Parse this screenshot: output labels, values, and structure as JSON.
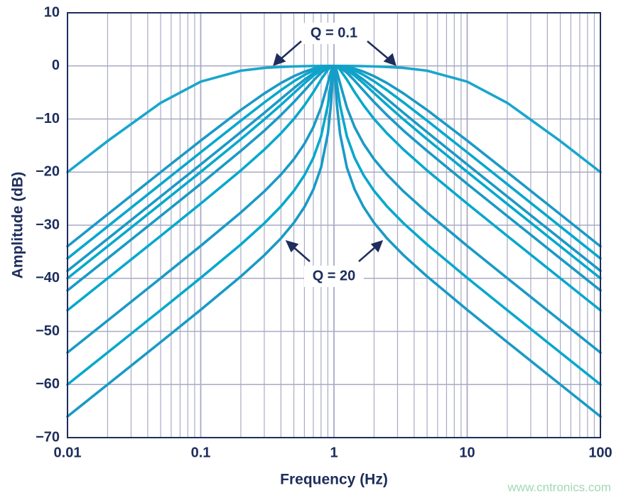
{
  "chart_data": {
    "type": "line",
    "x_label": "Frequency (Hz)",
    "y_label": "Amplitude (dB)",
    "x_scale": "log",
    "grid": true,
    "xlim": [
      0.01,
      100
    ],
    "xticks": [
      0.01,
      0.1,
      1,
      10,
      100
    ],
    "ylim": [
      -70,
      10
    ],
    "yticks": [
      {
        "value": -70,
        "label": "−70"
      },
      {
        "value": -60,
        "label": "−60"
      },
      {
        "value": -50,
        "label": "−50"
      },
      {
        "value": -40,
        "label": "−40"
      },
      {
        "value": -30,
        "label": "−30"
      },
      {
        "value": -20,
        "label": "−20"
      },
      {
        "value": -10,
        "label": "−10"
      },
      0,
      10
    ],
    "annotations": [
      "Q = 0.1",
      "Q = 20"
    ],
    "watermark": "www.cntronics.com",
    "x": [
      0.01,
      0.02,
      0.05,
      0.1,
      0.2,
      0.3,
      0.4,
      0.5,
      0.6,
      0.7,
      0.8,
      0.9,
      0.95,
      0.98,
      1,
      1.02,
      1.05,
      1.11,
      1.25,
      1.43,
      1.67,
      2,
      2.5,
      3.33,
      5,
      10,
      20,
      50,
      100
    ],
    "series": [
      {
        "color": "#19a6cc",
        "values": [
          -20.0,
          -14.15,
          -6.97,
          -2.97,
          -0.9,
          -0.38,
          -0.19,
          -0.1,
          -0.05,
          -0.02,
          -0.01,
          0,
          0,
          0,
          0,
          0,
          0,
          0,
          -0.01,
          -0.02,
          -0.05,
          -0.1,
          -0.19,
          -0.38,
          -0.9,
          -2.97,
          -6.97,
          -14.15,
          -20.0
        ]
      },
      {
        "color": "#1a9ac6",
        "values": [
          -33.98,
          -27.96,
          -20.02,
          -14.07,
          -8.3,
          -5.19,
          -3.23,
          -1.94,
          -1.09,
          -0.54,
          -0.21,
          -0.05,
          -0.01,
          0,
          0,
          0,
          -0.01,
          -0.05,
          -0.21,
          -0.54,
          -1.09,
          -1.94,
          -3.23,
          -5.19,
          -8.3,
          -14.07,
          -20.02,
          -27.96,
          -33.98
        ]
      },
      {
        "color": "#08a8cc",
        "values": [
          -36.26,
          -30.24,
          -22.28,
          -16.27,
          -10.31,
          -6.89,
          -4.57,
          -2.9,
          -1.71,
          -0.88,
          -0.36,
          -0.08,
          -0.02,
          0,
          0,
          0,
          -0.02,
          -0.08,
          -0.36,
          -0.88,
          -1.71,
          -2.9,
          -4.57,
          -6.89,
          -10.31,
          -16.27,
          -22.28,
          -30.24,
          -36.26
        ]
      },
      {
        "color": "#1a9ac6",
        "values": [
          -38.59,
          -32.57,
          -24.6,
          -18.56,
          -12.47,
          -8.84,
          -6.22,
          -4.19,
          -2.61,
          -1.42,
          -0.59,
          -0.14,
          -0.03,
          -0.01,
          0,
          -0.01,
          -0.03,
          -0.14,
          -0.59,
          -1.42,
          -2.61,
          -4.19,
          -6.22,
          -8.84,
          -12.47,
          -18.56,
          -24.6,
          -32.57,
          -38.59
        ]
      },
      {
        "color": "#08a8cc",
        "values": [
          -40.0,
          -33.98,
          -26.01,
          -19.96,
          -13.81,
          -10.09,
          -7.34,
          -5.12,
          -3.3,
          -1.85,
          -0.8,
          -0.19,
          -0.05,
          -0.01,
          0,
          -0.01,
          -0.05,
          -0.19,
          -0.8,
          -1.85,
          -3.3,
          -5.12,
          -7.34,
          -10.09,
          -13.81,
          -19.96,
          -26.01,
          -33.98,
          -40.0
        ]
      },
      {
        "color": "#1a9ac6",
        "values": [
          -42.28,
          -36.26,
          -28.28,
          -22.22,
          -16.01,
          -12.2,
          -9.27,
          -6.81,
          -4.66,
          -2.78,
          -1.28,
          -0.32,
          -0.08,
          -0.01,
          0,
          -0.01,
          -0.08,
          -0.32,
          -1.28,
          -2.78,
          -4.66,
          -6.81,
          -9.27,
          -12.2,
          -16.01,
          -22.22,
          -28.28,
          -36.26,
          -42.28
        ]
      },
      {
        "color": "#08a8cc",
        "values": [
          -46.02,
          -40.0,
          -32.02,
          -25.94,
          -19.69,
          -15.77,
          -12.7,
          -10.0,
          -7.44,
          -4.95,
          -2.58,
          -0.71,
          -0.18,
          -0.03,
          0,
          -0.03,
          -0.18,
          -0.71,
          -2.58,
          -4.95,
          -7.44,
          -10.0,
          -12.7,
          -15.77,
          -19.69,
          -25.94,
          -32.02,
          -40.0,
          -46.02
        ]
      },
      {
        "color": "#1a9ac6",
        "values": [
          -53.98,
          -47.96,
          -39.98,
          -33.89,
          -27.61,
          -23.64,
          -20.46,
          -17.58,
          -14.69,
          -11.54,
          -7.83,
          -3.25,
          -1.02,
          -0.17,
          0,
          -0.17,
          -1.02,
          -3.25,
          -7.83,
          -11.54,
          -14.69,
          -17.58,
          -20.46,
          -23.64,
          -27.61,
          -33.89,
          -39.98,
          -47.96,
          -53.98
        ]
      },
      {
        "color": "#08a8cc",
        "values": [
          -60.0,
          -53.98,
          -46.0,
          -39.91,
          -33.63,
          -29.64,
          -26.45,
          -23.54,
          -20.6,
          -17.33,
          -13.28,
          -7.37,
          -3.12,
          -0.66,
          0,
          -0.66,
          -3.12,
          -7.37,
          -13.28,
          -17.33,
          -20.6,
          -23.54,
          -26.45,
          -29.64,
          -33.63,
          -39.91,
          -46.0,
          -53.98,
          -60.0
        ]
      },
      {
        "color": "#1a9ac6",
        "values": [
          -66.02,
          -60.0,
          -52.02,
          -45.93,
          -39.65,
          -35.66,
          -32.47,
          -29.55,
          -26.59,
          -23.29,
          -19.13,
          -12.75,
          -7.17,
          -2.18,
          0,
          -2.18,
          -7.17,
          -12.75,
          -19.13,
          -23.29,
          -26.59,
          -29.55,
          -32.47,
          -35.66,
          -39.65,
          -45.93,
          -52.02,
          -60.0,
          -66.02
        ]
      }
    ]
  }
}
